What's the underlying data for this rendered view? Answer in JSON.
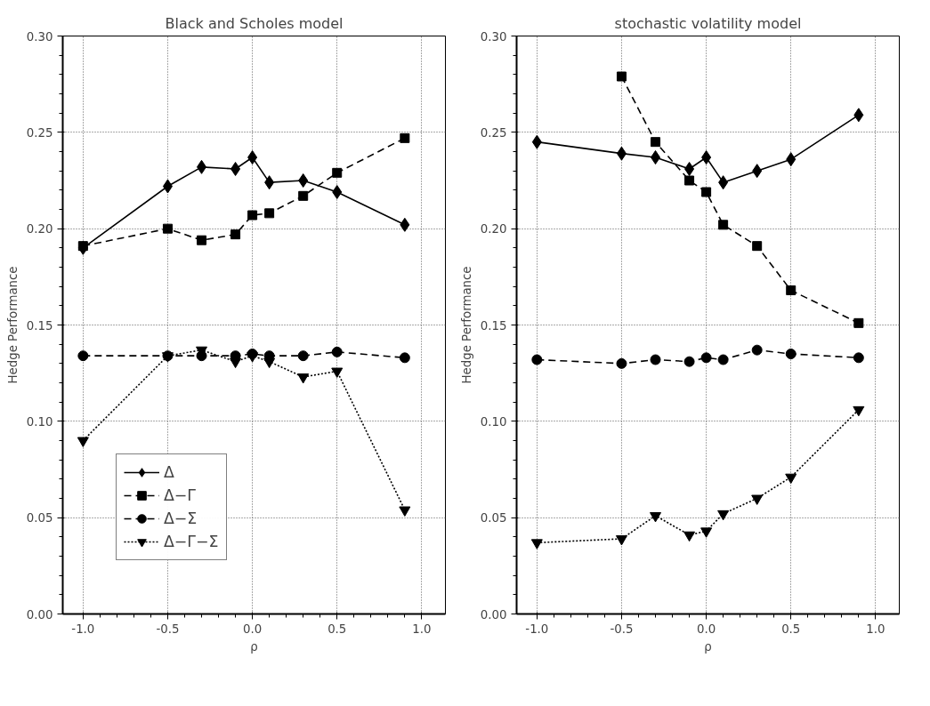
{
  "chart_data": [
    {
      "type": "line",
      "title": "Black and Scholes model",
      "xlabel": "ρ",
      "ylabel": "Hedge Performance",
      "x": [
        -1.0,
        -0.5,
        -0.3,
        -0.1,
        0.0,
        0.1,
        0.3,
        0.5,
        0.9
      ],
      "xlim": [
        -1.12,
        1.14
      ],
      "ylim": [
        0,
        0.3
      ],
      "xticks": [
        {
          "value": -1,
          "label": "-1.0"
        },
        {
          "value": -0.5,
          "label": "-0.5"
        },
        {
          "value": 0,
          "label": "0.0"
        },
        {
          "value": 0.5,
          "label": "0.5"
        },
        {
          "value": 1,
          "label": "1.0"
        }
      ],
      "yticks": [
        {
          "value": 0,
          "label": "0.00"
        },
        {
          "value": 0.05,
          "label": "0.05"
        },
        {
          "value": 0.1,
          "label": "0.10"
        },
        {
          "value": 0.15,
          "label": "0.15"
        },
        {
          "value": 0.2,
          "label": "0.20"
        },
        {
          "value": 0.25,
          "label": "0.25"
        },
        {
          "value": 0.3,
          "label": "0.30"
        }
      ],
      "grid": true,
      "legend": "bottom left",
      "series": [
        {
          "name": "Δ",
          "color": "#000000",
          "marker": "diamond",
          "line_style": "solid",
          "values": [
            0.19,
            0.222,
            0.232,
            0.231,
            0.237,
            0.224,
            0.225,
            0.219,
            0.202
          ]
        },
        {
          "name": "Δ−Γ",
          "color": "#000000",
          "marker": "square",
          "line_style": "dashed",
          "values": [
            0.191,
            0.2,
            0.194,
            0.197,
            0.207,
            0.208,
            0.217,
            0.229,
            0.247
          ]
        },
        {
          "name": "Δ−Σ",
          "color": "#000000",
          "marker": "circle",
          "line_style": "dashed",
          "values": [
            0.134,
            0.134,
            0.134,
            0.134,
            0.135,
            0.134,
            0.134,
            0.136,
            0.133
          ]
        },
        {
          "name": "Δ−Γ−Σ",
          "color": "#000000",
          "marker": "triangle",
          "line_style": "dotted",
          "values": [
            0.09,
            0.134,
            0.137,
            0.131,
            0.134,
            0.131,
            0.123,
            0.126,
            0.054
          ]
        }
      ]
    },
    {
      "type": "line",
      "title": "stochastic volatility model",
      "xlabel": "ρ",
      "ylabel": "Hedge Performance",
      "x": [
        -1.0,
        -0.5,
        -0.3,
        -0.1,
        0.0,
        0.1,
        0.3,
        0.5,
        0.9
      ],
      "xlim": [
        -1.12,
        1.14
      ],
      "ylim": [
        0,
        0.3
      ],
      "xticks": [
        {
          "value": -1,
          "label": "-1.0"
        },
        {
          "value": -0.5,
          "label": "-0.5"
        },
        {
          "value": 0,
          "label": "0.0"
        },
        {
          "value": 0.5,
          "label": "0.5"
        },
        {
          "value": 1,
          "label": "1.0"
        }
      ],
      "yticks": [
        {
          "value": 0,
          "label": "0.00"
        },
        {
          "value": 0.05,
          "label": "0.05"
        },
        {
          "value": 0.1,
          "label": "0.10"
        },
        {
          "value": 0.15,
          "label": "0.15"
        },
        {
          "value": 0.2,
          "label": "0.20"
        },
        {
          "value": 0.25,
          "label": "0.25"
        },
        {
          "value": 0.3,
          "label": "0.30"
        }
      ],
      "grid": true,
      "series": [
        {
          "color": "#000000",
          "marker": "diamond",
          "line_style": "solid",
          "values": [
            0.245,
            0.239,
            0.237,
            0.231,
            0.237,
            0.224,
            0.23,
            0.236,
            0.259
          ]
        },
        {
          "color": "#000000",
          "marker": "square",
          "line_style": "dashed",
          "values": [
            null,
            0.279,
            0.245,
            0.225,
            0.219,
            0.202,
            0.191,
            0.168,
            0.151
          ]
        },
        {
          "color": "#000000",
          "marker": "circle",
          "line_style": "dashed",
          "values": [
            0.132,
            0.13,
            0.132,
            0.131,
            0.133,
            0.132,
            0.137,
            0.135,
            0.133
          ]
        },
        {
          "color": "#000000",
          "marker": "triangle",
          "line_style": "dotted",
          "values": [
            0.037,
            0.039,
            0.051,
            0.041,
            0.043,
            0.052,
            0.06,
            0.071,
            0.106
          ]
        }
      ]
    }
  ]
}
